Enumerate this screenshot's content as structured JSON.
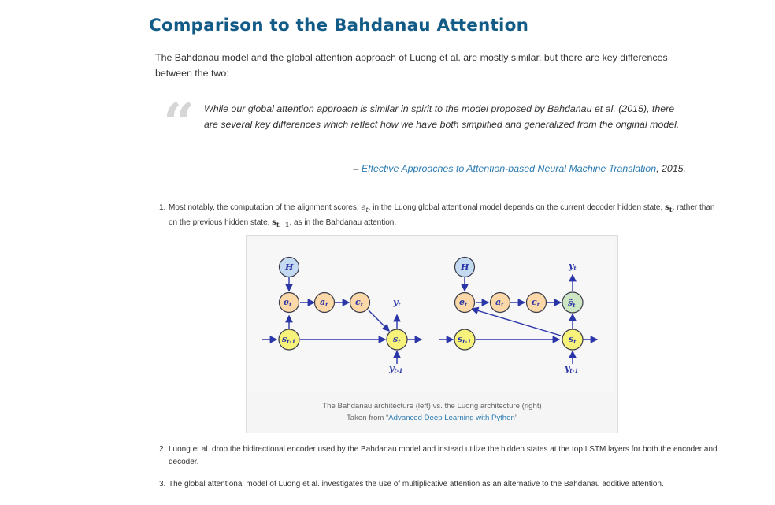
{
  "heading": "Comparison to the Bahdanau Attention",
  "intro": "The Bahdanau model and the global attention approach of Luong et al. are mostly similar, but there are key differences between the two:",
  "quote": {
    "icon": "quote-icon",
    "text": "While our global attention approach is similar in spirit to the model proposed by Bahdanau et al. (2015), there are several key differences which reflect how we have both simplified and generalized from the original model.",
    "cite_prefix": "– ",
    "cite_link": "Effective Approaches to Attention-based Neural Machine Translation",
    "cite_suffix": ", 2015."
  },
  "list": [
    {
      "num": "1.",
      "parts": {
        "a": "Most notably, the computation of the alignment scores, ",
        "m1": "e",
        "m1s": "t",
        "b": ", in the Luong global attentional model depends on the current decoder hidden state, ",
        "m2": "s",
        "m2s": "t",
        "c": ", rather than on the previous hidden state, ",
        "m3": "s",
        "m3s": "t−1",
        "d": ", as in the Bahdanau attention."
      }
    },
    {
      "num": "2.",
      "text": "Luong et al. drop the bidirectional encoder used by the Bahdanau model and instead utilize the hidden states at the top LSTM layers for both the encoder and decoder."
    },
    {
      "num": "3.",
      "text": "The global attentional model of Luong et al. investigates the use of multiplicative attention as an alternative to the Bahdanau additive attention."
    }
  ],
  "figure": {
    "caption_line1": "The Bahdanau architecture (left) vs. the Luong architecture (right)",
    "caption_prefix": "Taken from “",
    "caption_link": "Advanced Deep Learning with Python",
    "caption_suffix": "”",
    "left_labels": {
      "H": "H",
      "e": "e",
      "es": "t",
      "a": "a",
      "as": "t",
      "c": "c",
      "cs": "t",
      "y": "y",
      "ys": "t",
      "s": "s",
      "ss": "t",
      "sp": "s",
      "sps": "t-1",
      "yp": "y",
      "yps": "t-1"
    },
    "right_labels": {
      "H": "H",
      "e": "e",
      "es": "t",
      "a": "a",
      "as": "t",
      "c": "c",
      "cs": "t",
      "st": "s̃",
      "sts": "t",
      "y": "y",
      "ys": "t",
      "s": "s",
      "ss": "t",
      "sp": "s",
      "sps": "t-1",
      "yp": "y",
      "yps": "t-1"
    },
    "colors": {
      "blue_node": "#c3daf0",
      "orange_node": "#fbd8a8",
      "yellow_node": "#f6f27a",
      "green_node": "#cfe6c4",
      "node_stroke": "#3a3a4a",
      "arrow": "#2a35a8"
    }
  }
}
